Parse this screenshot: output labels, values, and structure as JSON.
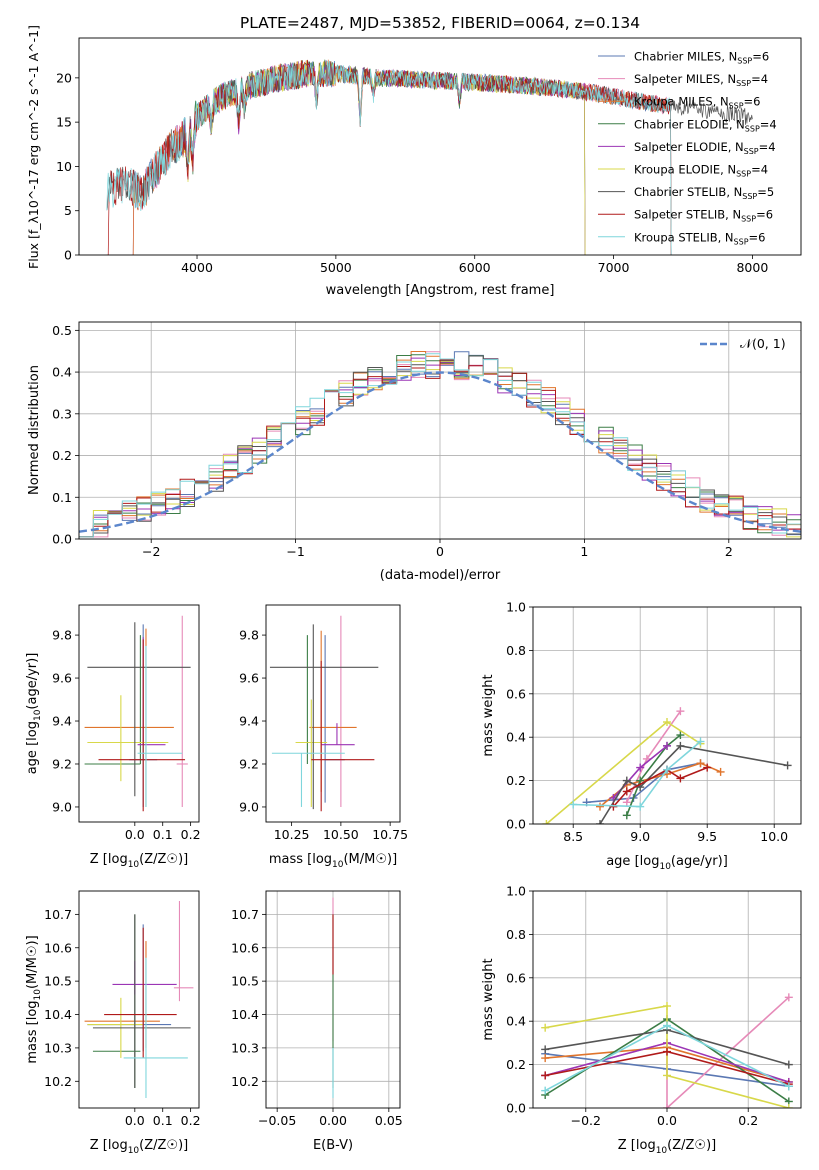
{
  "title": "PLATE=2487, MJD=53852, FIBERID=0064, z=0.134",
  "colors": {
    "Chabrier MILES": "#5b78b3",
    "Salpeter MILES": "#e68ab8",
    "Kroupa MILES": "#e0752d",
    "Chabrier ELODIE": "#3b7d46",
    "Salpeter ELODIE": "#9b35b5",
    "Kroupa ELODIE": "#d8d84a",
    "Chabrier STELIB": "#555555",
    "Salpeter STELIB": "#b01a1a",
    "Kroupa STELIB": "#7fd6dc"
  },
  "chart_data": [
    {
      "id": "spectrum",
      "type": "line",
      "xlabel": "wavelength [Angstrom, rest frame]",
      "ylabel": "Flux [f_λ10^-17 erg cm^-2 s^-1 A^-1]",
      "xlim": [
        3150,
        8350
      ],
      "ylim": [
        0,
        24.5
      ],
      "xticks": [
        4000,
        5000,
        6000,
        7000,
        8000
      ],
      "yticks": [
        0,
        5,
        10,
        15,
        20
      ],
      "legend_position": "top-right",
      "series": [
        {
          "name": "Chabrier MILES, N_SSP=6",
          "label_main": "Chabrier MILES, N",
          "label_sub": "SSP",
          "label_tail": "=6",
          "key": "Chabrier MILES",
          "range": [
            3530,
            7420
          ]
        },
        {
          "name": "Salpeter MILES, N_SSP=4",
          "label_main": "Salpeter MILES, N",
          "label_sub": "SSP",
          "label_tail": "=4",
          "key": "Salpeter MILES",
          "range": [
            3530,
            7420
          ]
        },
        {
          "name": "Kroupa MILES, N_SSP=6",
          "label_main": "Kroupa MILES, N",
          "label_sub": "SSP",
          "label_tail": "=6",
          "key": "Kroupa MILES",
          "range": [
            3530,
            7420
          ]
        },
        {
          "name": "Chabrier ELODIE, N_SSP=4",
          "label_main": "Chabrier ELODIE, N",
          "label_sub": "SSP",
          "label_tail": "=4",
          "key": "Chabrier ELODIE",
          "range": [
            3900,
            6800
          ]
        },
        {
          "name": "Salpeter ELODIE, N_SSP=4",
          "label_main": "Salpeter ELODIE, N",
          "label_sub": "SSP",
          "label_tail": "=4",
          "key": "Salpeter ELODIE",
          "range": [
            3900,
            6800
          ]
        },
        {
          "name": "Kroupa ELODIE, N_SSP=4",
          "label_main": "Kroupa ELODIE, N",
          "label_sub": "SSP",
          "label_tail": "=4",
          "key": "Kroupa ELODIE",
          "range": [
            3900,
            6800
          ]
        },
        {
          "name": "Chabrier STELIB, N_SSP=5",
          "label_main": "Chabrier STELIB, N",
          "label_sub": "SSP",
          "label_tail": "=5",
          "key": "Chabrier STELIB",
          "range": [
            3350,
            8000
          ]
        },
        {
          "name": "Salpeter STELIB, N_SSP=6",
          "label_main": "Salpeter STELIB, N",
          "label_sub": "SSP",
          "label_tail": "=6",
          "key": "Salpeter STELIB",
          "range": [
            3350,
            7420
          ]
        },
        {
          "name": "Kroupa STELIB, N_SSP=6",
          "label_main": "Kroupa STELIB, N",
          "label_sub": "SSP",
          "label_tail": "=6",
          "key": "Kroupa STELIB",
          "range": [
            3350,
            7420
          ]
        }
      ],
      "continuum": {
        "x": [
          3350,
          3500,
          3600,
          3700,
          3800,
          3900,
          4000,
          4100,
          4200,
          4400,
          4600,
          4800,
          5000,
          5300,
          5600,
          6000,
          6300,
          6600,
          6900,
          7200,
          7400,
          7600,
          8000
        ],
        "y": [
          7.2,
          8.2,
          6.8,
          9.5,
          11.8,
          13.2,
          15.5,
          17.0,
          18.0,
          19.2,
          20.0,
          20.5,
          20.5,
          20.0,
          19.8,
          19.5,
          19.2,
          18.8,
          18.2,
          17.3,
          16.8,
          16.5,
          15.5
        ]
      }
    },
    {
      "id": "residuals",
      "type": "step",
      "xlabel": "(data-model)/error",
      "ylabel": "Normed distribution",
      "xlim": [
        -2.5,
        2.5
      ],
      "ylim": [
        0,
        0.52
      ],
      "xticks": [
        -2,
        -1,
        0,
        1,
        2
      ],
      "yticks": [
        0.0,
        0.1,
        0.2,
        0.3,
        0.4,
        0.5
      ],
      "legend_position": "top-right",
      "bin_width": 0.1,
      "gaussian": {
        "name": "N(0,1)",
        "label": "𝒩(0, 1)",
        "color": "#5b86cc"
      }
    },
    {
      "id": "age-vs-Z",
      "type": "errorbar",
      "xlabel_main": "Z [log",
      "xlabel_sub": "10",
      "xlabel_tail": "(Z/Z☉)]",
      "ylabel": "age  [log10(age/yr)]",
      "ylabel_main": "age  [log",
      "ylabel_sub": "10",
      "ylabel_tail": "(age/yr)]",
      "xlim": [
        -0.2,
        0.23
      ],
      "ylim": [
        8.93,
        9.94
      ],
      "xticks": [
        0.0,
        0.1,
        0.2
      ],
      "yticks": [
        9.0,
        9.2,
        9.4,
        9.6,
        9.8
      ],
      "points": [
        {
          "key": "Chabrier MILES",
          "x": 0.03,
          "y": 9.22,
          "xerr": [
            0.05,
            0.05
          ],
          "yerr": [
            0.22,
            0.63
          ]
        },
        {
          "key": "Salpeter MILES",
          "x": 0.17,
          "y": 9.2,
          "xerr": [
            0.02,
            0.02
          ],
          "yerr": [
            0.2,
            0.69
          ]
        },
        {
          "key": "Kroupa MILES",
          "x": 0.04,
          "y": 9.37,
          "xerr": [
            0.22,
            0.1
          ],
          "yerr": [
            0.37,
            0.46
          ]
        },
        {
          "key": "Chabrier ELODIE",
          "x": 0.02,
          "y": 9.2,
          "xerr": [
            0.2,
            0.0
          ],
          "yerr": [
            0.0,
            0.6
          ]
        },
        {
          "key": "Salpeter ELODIE",
          "x": 0.03,
          "y": 9.29,
          "xerr": [
            0.02,
            0.08
          ],
          "yerr": [
            0.0,
            0.5
          ]
        },
        {
          "key": "Kroupa ELODIE",
          "x": -0.05,
          "y": 9.3,
          "xerr": [
            0.12,
            0.17
          ],
          "yerr": [
            0.18,
            0.22
          ]
        },
        {
          "key": "Chabrier STELIB",
          "x": 0.0,
          "y": 9.65,
          "xerr": [
            0.17,
            0.2
          ],
          "yerr": [
            0.6,
            0.21
          ]
        },
        {
          "key": "Salpeter STELIB",
          "x": 0.03,
          "y": 9.22,
          "xerr": [
            0.16,
            0.15
          ],
          "yerr": [
            0.24,
            0.56
          ]
        },
        {
          "key": "Kroupa STELIB",
          "x": 0.04,
          "y": 9.25,
          "xerr": [
            0.03,
            0.13
          ],
          "yerr": [
            0.25,
            0.5
          ]
        }
      ]
    },
    {
      "id": "age-vs-mass",
      "type": "errorbar",
      "xlabel_main": "mass [log",
      "xlabel_sub": "10",
      "xlabel_tail": "(M/M☉)]",
      "xlim": [
        10.12,
        10.8
      ],
      "ylim": [
        8.93,
        9.94
      ],
      "xticks": [
        10.25,
        10.5,
        10.75
      ],
      "yticks": [
        9.0,
        9.2,
        9.4,
        9.6,
        9.8
      ],
      "points": [
        {
          "key": "Chabrier MILES",
          "x": 10.42,
          "y": 9.22,
          "xerr": [
            0.0,
            0.1
          ],
          "yerr": [
            0.2,
            0.58
          ]
        },
        {
          "key": "Salpeter MILES",
          "x": 10.5,
          "y": 9.2,
          "xerr": [
            0.0,
            0.0
          ],
          "yerr": [
            0.2,
            0.69
          ]
        },
        {
          "key": "Kroupa MILES",
          "x": 10.4,
          "y": 9.37,
          "xerr": [
            0.06,
            0.18
          ],
          "yerr": [
            0.3,
            0.45
          ]
        },
        {
          "key": "Chabrier ELODIE",
          "x": 10.33,
          "y": 9.2,
          "xerr": [
            0.0,
            0.0
          ],
          "yerr": [
            0.0,
            0.6
          ]
        },
        {
          "key": "Salpeter ELODIE",
          "x": 10.48,
          "y": 9.29,
          "xerr": [
            0.08,
            0.09
          ],
          "yerr": [
            0.0,
            0.1
          ]
        },
        {
          "key": "Kroupa ELODIE",
          "x": 10.35,
          "y": 9.3,
          "xerr": [
            0.08,
            0.08
          ],
          "yerr": [
            0.3,
            0.2
          ]
        },
        {
          "key": "Chabrier STELIB",
          "x": 10.36,
          "y": 9.65,
          "xerr": [
            0.22,
            0.33
          ],
          "yerr": [
            0.66,
            0.2
          ]
        },
        {
          "key": "Salpeter STELIB",
          "x": 10.4,
          "y": 9.22,
          "xerr": [
            0.05,
            0.27
          ],
          "yerr": [
            0.24,
            0.46
          ]
        },
        {
          "key": "Kroupa STELIB",
          "x": 10.3,
          "y": 9.25,
          "xerr": [
            0.15,
            0.22
          ],
          "yerr": [
            0.25,
            0.0
          ]
        }
      ]
    },
    {
      "id": "mass-weight-vs-age",
      "type": "line",
      "xlabel_main": "age  [log",
      "xlabel_sub": "10",
      "xlabel_tail": "(age/yr)]",
      "ylabel": "mass weight",
      "xlim": [
        8.2,
        10.2
      ],
      "ylim": [
        0,
        1.0
      ],
      "xticks": [
        8.5,
        9.0,
        9.5,
        10.0
      ],
      "yticks": [
        0.0,
        0.2,
        0.4,
        0.6,
        0.8,
        1.0
      ],
      "series": [
        {
          "key": "Chabrier MILES",
          "x": [
            8.6,
            8.95,
            9.2,
            9.45
          ],
          "y": [
            0.1,
            0.12,
            0.25,
            0.28
          ]
        },
        {
          "key": "Salpeter MILES",
          "x": [
            8.9,
            9.05,
            9.3
          ],
          "y": [
            0.1,
            0.3,
            0.52
          ]
        },
        {
          "key": "Kroupa MILES",
          "x": [
            8.7,
            8.9,
            9.2,
            9.45,
            9.6
          ],
          "y": [
            0.08,
            0.18,
            0.23,
            0.28,
            0.24
          ]
        },
        {
          "key": "Chabrier ELODIE",
          "x": [
            8.9,
            9.0,
            9.2,
            9.3
          ],
          "y": [
            0.04,
            0.2,
            0.36,
            0.41
          ]
        },
        {
          "key": "Salpeter ELODIE",
          "x": [
            8.8,
            9.0,
            9.2
          ],
          "y": [
            0.12,
            0.26,
            0.36
          ]
        },
        {
          "key": "Kroupa ELODIE",
          "x": [
            8.3,
            9.2,
            9.45
          ],
          "y": [
            0.0,
            0.47,
            0.37
          ]
        },
        {
          "key": "Chabrier STELIB",
          "x": [
            8.7,
            8.9,
            9.0,
            9.3,
            10.1
          ],
          "y": [
            0.0,
            0.2,
            0.17,
            0.36,
            0.27
          ]
        },
        {
          "key": "Salpeter STELIB",
          "x": [
            8.8,
            8.9,
            9.2,
            9.3,
            9.5
          ],
          "y": [
            0.08,
            0.15,
            0.25,
            0.21,
            0.26
          ]
        },
        {
          "key": "Kroupa STELIB",
          "x": [
            8.5,
            9.0,
            9.2,
            9.45
          ],
          "y": [
            0.09,
            0.08,
            0.25,
            0.38
          ]
        }
      ]
    },
    {
      "id": "mass-vs-Z",
      "type": "errorbar",
      "xlabel_main": "Z [log",
      "xlabel_sub": "10",
      "xlabel_tail": "(Z/Z☉)]",
      "ylabel_main": "mass [log",
      "ylabel_sub": "10",
      "ylabel_tail": "(M/M☉)]",
      "xlim": [
        -0.2,
        0.23
      ],
      "ylim": [
        10.12,
        10.77
      ],
      "xticks": [
        0.0,
        0.1,
        0.2
      ],
      "yticks": [
        10.2,
        10.3,
        10.4,
        10.5,
        10.6,
        10.7
      ],
      "points": [
        {
          "key": "Chabrier MILES",
          "x": 0.03,
          "y": 10.37,
          "xerr": [
            0.2,
            0.1
          ],
          "yerr": [
            0.08,
            0.3
          ]
        },
        {
          "key": "Salpeter MILES",
          "x": 0.16,
          "y": 10.48,
          "xerr": [
            0.02,
            0.05
          ],
          "yerr": [
            0.04,
            0.26
          ]
        },
        {
          "key": "Kroupa MILES",
          "x": 0.04,
          "y": 10.38,
          "xerr": [
            0.22,
            0.05
          ],
          "yerr": [
            0.08,
            0.24
          ]
        },
        {
          "key": "Chabrier ELODIE",
          "x": 0.0,
          "y": 10.29,
          "xerr": [
            0.15,
            0.02
          ],
          "yerr": [
            0.11,
            0.41
          ]
        },
        {
          "key": "Salpeter ELODIE",
          "x": 0.0,
          "y": 10.49,
          "xerr": [
            0.08,
            0.15
          ],
          "yerr": [
            0.03,
            0.07
          ]
        },
        {
          "key": "Kroupa ELODIE",
          "x": -0.05,
          "y": 10.37,
          "xerr": [
            0.12,
            0.08
          ],
          "yerr": [
            0.1,
            0.08
          ]
        },
        {
          "key": "Chabrier STELIB",
          "x": 0.0,
          "y": 10.36,
          "xerr": [
            0.15,
            0.2
          ],
          "yerr": [
            0.18,
            0.34
          ]
        },
        {
          "key": "Salpeter STELIB",
          "x": 0.03,
          "y": 10.4,
          "xerr": [
            0.14,
            0.12
          ],
          "yerr": [
            0.13,
            0.26
          ]
        },
        {
          "key": "Kroupa STELIB",
          "x": 0.04,
          "y": 10.27,
          "xerr": [
            0.08,
            0.15
          ],
          "yerr": [
            0.12,
            0.3
          ]
        }
      ]
    },
    {
      "id": "mass-vs-EBV",
      "type": "errorbar",
      "xlabel": "E(B-V)",
      "xlim": [
        -0.06,
        0.06
      ],
      "ylim": [
        10.12,
        10.77
      ],
      "xticks": [
        -0.05,
        0.0,
        0.05
      ],
      "yticks": [
        10.2,
        10.3,
        10.4,
        10.5,
        10.6,
        10.7
      ],
      "points": [
        {
          "key": "Salpeter MILES",
          "x": 0.0,
          "y": 10.48,
          "xerr": [
            0,
            0
          ],
          "yerr": [
            0.16,
            0.27
          ]
        },
        {
          "key": "Chabrier ELODIE",
          "x": 0.0,
          "y": 10.3,
          "xerr": [
            0,
            0
          ],
          "yerr": [
            0.12,
            0.4
          ]
        },
        {
          "key": "Salpeter STELIB",
          "x": 0.0,
          "y": 10.6,
          "xerr": [
            0,
            0
          ],
          "yerr": [
            0.08,
            0.1
          ]
        },
        {
          "key": "Kroupa STELIB",
          "x": 0.0,
          "y": 10.27,
          "xerr": [
            0,
            0
          ],
          "yerr": [
            0.12,
            0.03
          ]
        }
      ]
    },
    {
      "id": "mass-weight-vs-Z",
      "type": "line",
      "xlabel_main": "Z [log",
      "xlabel_sub": "10",
      "xlabel_tail": "(Z/Z☉)]",
      "ylabel": "mass weight",
      "xlim": [
        -0.33,
        0.33
      ],
      "ylim": [
        0,
        1.0
      ],
      "xticks": [
        -0.2,
        0.0,
        0.2
      ],
      "yticks": [
        0.0,
        0.2,
        0.4,
        0.6,
        0.8,
        1.0
      ],
      "series": [
        {
          "key": "Chabrier MILES",
          "x": [
            -0.3,
            0.0,
            0.3
          ],
          "y": [
            0.25,
            0.18,
            0.1
          ]
        },
        {
          "key": "Salpeter MILES",
          "x": [
            -0.3,
            0.0,
            0.0,
            0.3
          ],
          "y": [
            0.15,
            0.3,
            0.0,
            0.51
          ]
        },
        {
          "key": "Kroupa MILES",
          "x": [
            -0.3,
            0.0,
            0.3
          ],
          "y": [
            0.23,
            0.28,
            0.12
          ]
        },
        {
          "key": "Chabrier ELODIE",
          "x": [
            -0.3,
            0.0,
            0.3
          ],
          "y": [
            0.06,
            0.41,
            0.03
          ]
        },
        {
          "key": "Salpeter ELODIE",
          "x": [
            -0.3,
            0.0,
            0.3
          ],
          "y": [
            0.15,
            0.3,
            0.12
          ]
        },
        {
          "key": "Kroupa ELODIE",
          "x": [
            -0.3,
            0.0,
            0.0,
            0.3
          ],
          "y": [
            0.37,
            0.47,
            0.15,
            0.0
          ]
        },
        {
          "key": "Chabrier STELIB",
          "x": [
            -0.3,
            0.0,
            0.3
          ],
          "y": [
            0.27,
            0.36,
            0.2
          ]
        },
        {
          "key": "Salpeter STELIB",
          "x": [
            -0.3,
            0.0,
            0.3
          ],
          "y": [
            0.15,
            0.26,
            0.11
          ]
        },
        {
          "key": "Kroupa STELIB",
          "x": [
            -0.3,
            0.0,
            0.3
          ],
          "y": [
            0.08,
            0.38,
            0.1
          ]
        }
      ]
    }
  ]
}
